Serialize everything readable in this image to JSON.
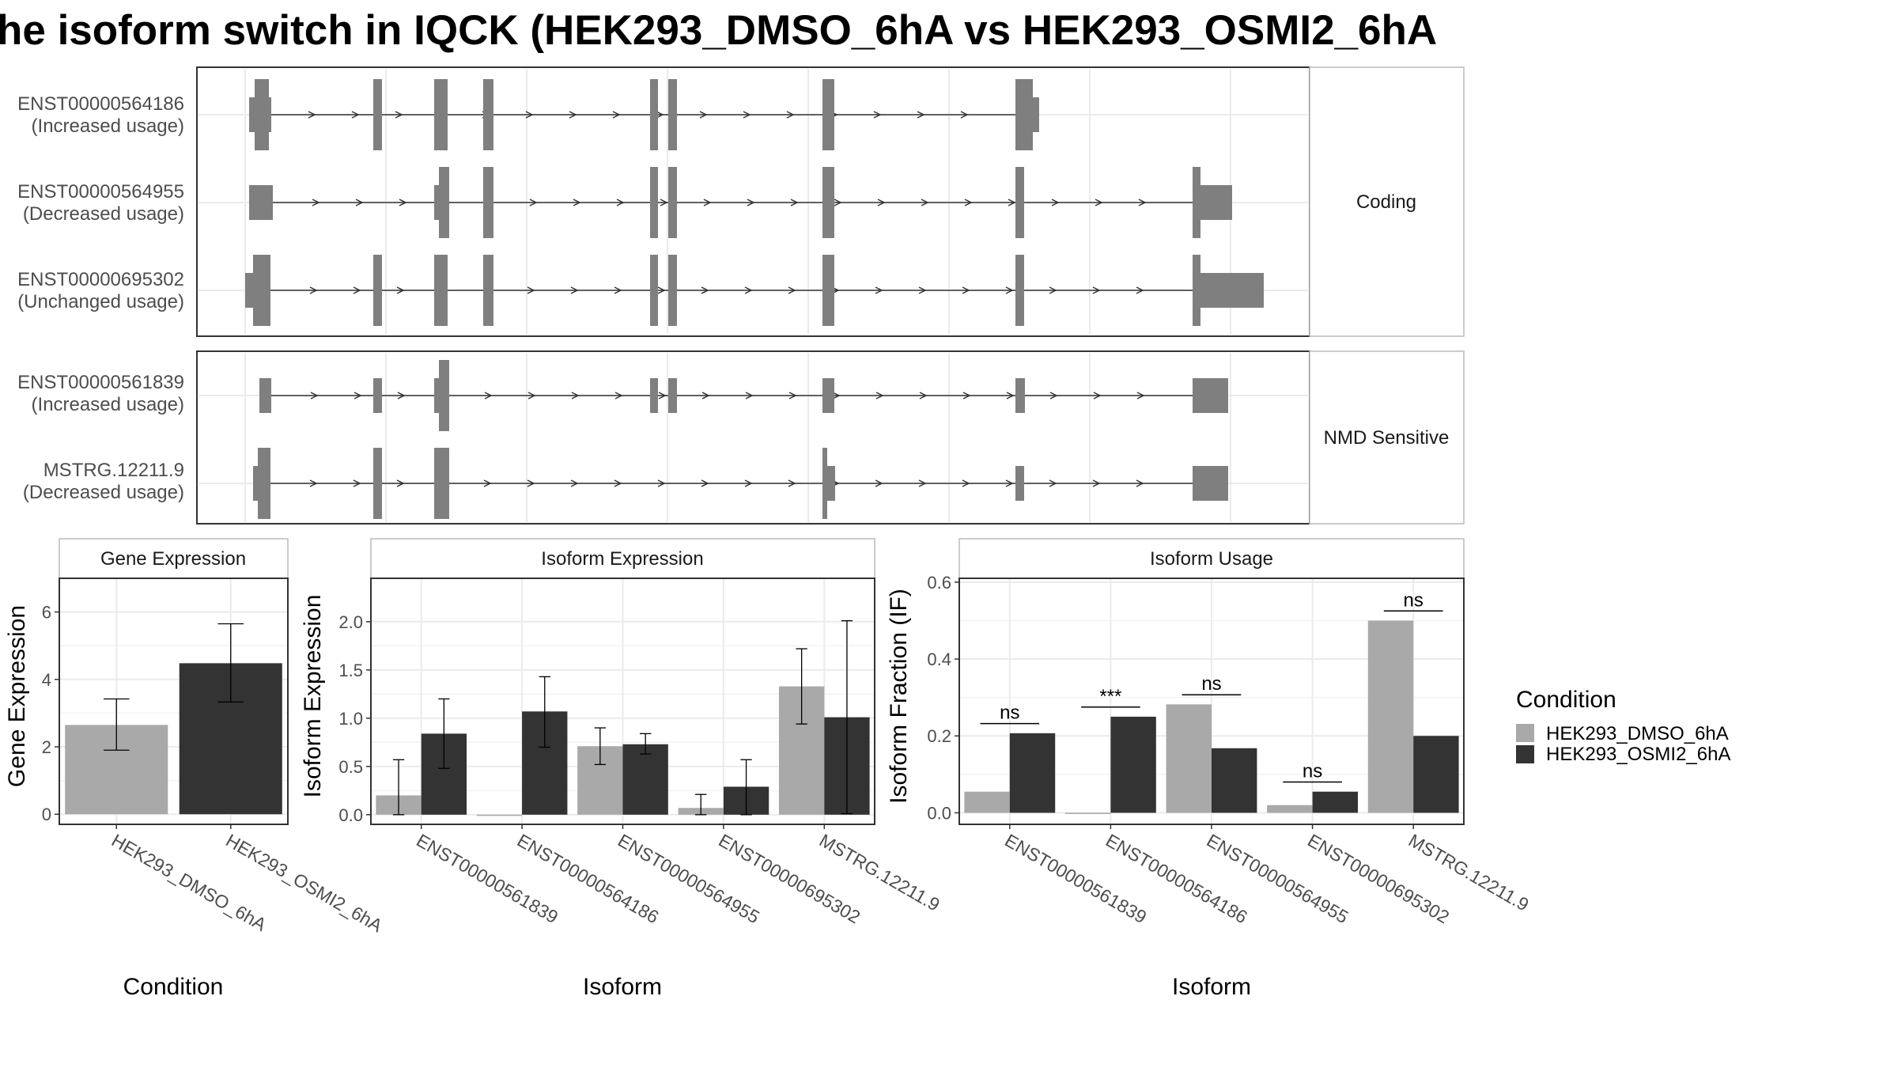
{
  "title": "he isoform switch in IQCK (HEK293_DMSO_6hA vs HEK293_OSMI2_6hA",
  "structure": {
    "facets": [
      {
        "label": "Coding",
        "rows": [
          {
            "id": "ENST00000564186",
            "usage": "(Increased usage)"
          },
          {
            "id": "ENST00000564955",
            "usage": "(Decreased usage)"
          },
          {
            "id": "ENST00000695302",
            "usage": "(Unchanged usage)"
          }
        ]
      },
      {
        "label": "NMD Sensitive",
        "rows": [
          {
            "id": "ENST00000561839",
            "usage": "(Increased usage)"
          },
          {
            "id": "MSTRG.12211.9",
            "usage": "(Decreased usage)"
          }
        ]
      }
    ]
  },
  "legend": {
    "title": "Condition",
    "items": [
      {
        "label": "HEK293_DMSO_6hA",
        "color": "#a9a9a9"
      },
      {
        "label": "HEK293_OSMI2_6hA",
        "color": "#333333"
      }
    ]
  },
  "chart_data": [
    {
      "type": "bar",
      "title": "Gene Expression",
      "xlabel": "Condition",
      "ylabel": "Gene Expression",
      "ylim": [
        -0.3,
        7.0
      ],
      "yticks": [
        0,
        2,
        4,
        6
      ],
      "grid": true,
      "categories": [
        "HEK293_DMSO_6hA",
        "HEK293_OSMI2_6hA"
      ],
      "values": [
        2.65,
        4.48
      ],
      "error_low": [
        1.9,
        3.33
      ],
      "error_high": [
        3.42,
        5.65
      ],
      "colors": [
        "#a9a9a9",
        "#333333"
      ]
    },
    {
      "type": "bar",
      "title": "Isoform Expression",
      "xlabel": "Isoform",
      "ylabel": "Isoform Expression",
      "ylim": [
        -0.1,
        2.45
      ],
      "yticks": [
        0.0,
        0.5,
        1.0,
        1.5,
        2.0
      ],
      "grid": true,
      "categories": [
        "ENST00000561839",
        "ENST00000564186",
        "ENST00000564955",
        "ENST00000695302",
        "MSTRG.12211.9"
      ],
      "series": [
        {
          "name": "HEK293_DMSO_6hA",
          "values": [
            0.2,
            0.0,
            0.71,
            0.07,
            1.33
          ],
          "error_low": [
            0.0,
            0.0,
            0.52,
            0.0,
            0.94
          ],
          "error_high": [
            0.57,
            0.0,
            0.9,
            0.21,
            1.72
          ]
        },
        {
          "name": "HEK293_OSMI2_6hA",
          "values": [
            0.84,
            1.07,
            0.73,
            0.29,
            1.01
          ],
          "error_low": [
            0.48,
            0.7,
            0.63,
            0.0,
            0.01
          ],
          "error_high": [
            1.2,
            1.43,
            0.84,
            0.57,
            2.01
          ]
        }
      ]
    },
    {
      "type": "bar",
      "title": "Isoform Usage",
      "xlabel": "Isoform",
      "ylabel": "Isoform Fraction (IF)",
      "ylim": [
        -0.03,
        0.61
      ],
      "yticks": [
        0.0,
        0.2,
        0.4,
        0.6
      ],
      "yticklabels": [
        "0.0",
        "0.2",
        "0.4",
        "0.6"
      ],
      "grid": true,
      "categories": [
        "ENST00000561839",
        "ENST00000564186",
        "ENST00000564955",
        "ENST00000695302",
        "MSTRG.12211.9"
      ],
      "series": [
        {
          "name": "HEK293_DMSO_6hA",
          "values": [
            0.055,
            0.0,
            0.282,
            0.02,
            0.5
          ]
        },
        {
          "name": "HEK293_OSMI2_6hA",
          "values": [
            0.207,
            0.25,
            0.168,
            0.055,
            0.2
          ]
        }
      ],
      "significance": [
        "ns",
        "***",
        "ns",
        "ns",
        "ns"
      ],
      "significance_y": [
        0.232,
        0.275,
        0.307,
        0.08,
        0.525
      ]
    }
  ]
}
